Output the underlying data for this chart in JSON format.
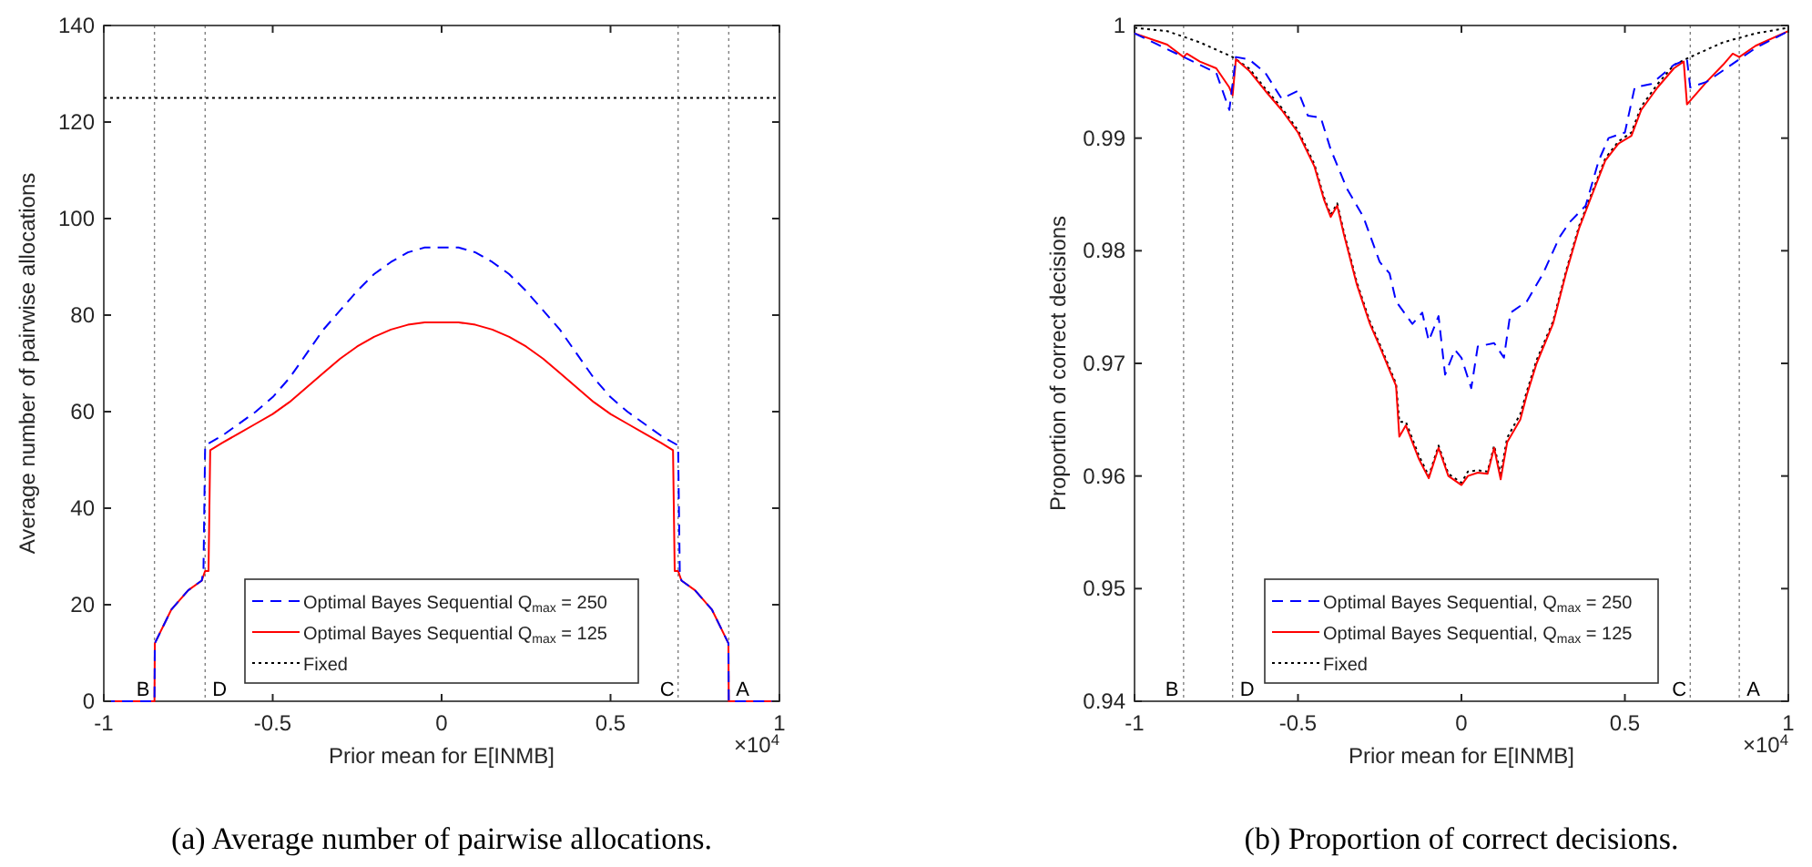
{
  "chart_data": [
    {
      "type": "line",
      "title": "(a) Average number of pairwise allocations.",
      "xlabel": "Prior mean for E[INMB]",
      "ylabel": "Average number of pairwise allocations",
      "xlim": [
        -1,
        1
      ],
      "xticks": [
        -1,
        -0.5,
        0,
        0.5,
        1
      ],
      "ylim": [
        0,
        140
      ],
      "yticks": [
        0,
        20,
        40,
        60,
        80,
        100,
        120,
        140
      ],
      "grid": false,
      "legend": "bottom",
      "annotations": [
        "×10$^{4}$"
      ],
      "ref_lines": [
        {
          "axis": "x",
          "value": -0.85,
          "label": "B",
          "color": "#808080",
          "line_style": "dotted"
        },
        {
          "axis": "x",
          "value": -0.7,
          "label": "D",
          "color": "#808080",
          "line_style": "dotted"
        },
        {
          "axis": "x",
          "value": 0.7,
          "label": "C",
          "color": "#808080",
          "line_style": "dotted"
        },
        {
          "axis": "x",
          "value": 0.85,
          "label": "A",
          "color": "#808080",
          "line_style": "dotted"
        }
      ],
      "series": [
        {
          "name": "Optimal Bayes Sequential Q$_{max}$ = 250",
          "color": "#0000ff",
          "line_style": "dashed",
          "x": [
            -1,
            -0.85,
            -0.849,
            -0.8,
            -0.75,
            -0.71,
            -0.705,
            -0.7,
            -0.65,
            -0.6,
            -0.55,
            -0.5,
            -0.45,
            -0.4,
            -0.35,
            -0.3,
            -0.25,
            -0.2,
            -0.15,
            -0.1,
            -0.05,
            0,
            0.05,
            0.1,
            0.15,
            0.2,
            0.25,
            0.3,
            0.35,
            0.4,
            0.45,
            0.5,
            0.55,
            0.6,
            0.65,
            0.7,
            0.705,
            0.71,
            0.75,
            0.8,
            0.849,
            0.85,
            1
          ],
          "values": [
            0,
            0,
            12,
            19,
            23,
            25,
            27,
            53,
            55,
            57.5,
            60,
            63,
            67,
            72,
            77,
            81,
            85,
            88.5,
            91,
            93,
            94,
            94,
            94,
            93,
            91,
            88.5,
            85,
            81,
            77,
            72,
            67,
            63,
            60,
            57.5,
            55,
            53,
            27,
            25,
            23,
            19,
            12,
            0,
            0
          ]
        },
        {
          "name": "Optimal Bayes Sequential Q$_{max}$ = 125",
          "color": "#ff0000",
          "line_style": "solid",
          "x": [
            -1,
            -0.85,
            -0.849,
            -0.8,
            -0.75,
            -0.71,
            -0.7,
            -0.69,
            -0.685,
            -0.65,
            -0.6,
            -0.55,
            -0.5,
            -0.45,
            -0.4,
            -0.35,
            -0.3,
            -0.25,
            -0.2,
            -0.15,
            -0.1,
            -0.05,
            0,
            0.05,
            0.1,
            0.15,
            0.2,
            0.25,
            0.3,
            0.35,
            0.4,
            0.45,
            0.5,
            0.55,
            0.6,
            0.65,
            0.685,
            0.69,
            0.7,
            0.71,
            0.75,
            0.8,
            0.849,
            0.85,
            1
          ],
          "values": [
            0,
            0,
            12,
            19,
            23,
            25,
            27,
            27,
            52,
            53.5,
            55.5,
            57.5,
            59.5,
            62,
            65,
            68,
            71,
            73.5,
            75.5,
            77,
            78,
            78.5,
            78.5,
            78.5,
            78,
            77,
            75.5,
            73.5,
            71,
            68,
            65,
            62,
            59.5,
            57.5,
            55.5,
            53.5,
            52,
            27,
            27,
            25,
            23,
            19,
            12,
            0,
            0
          ]
        },
        {
          "name": "Fixed",
          "color": "#000000",
          "line_style": "dotted",
          "x": [
            -1,
            1
          ],
          "values": [
            125,
            125
          ]
        }
      ]
    },
    {
      "type": "line",
      "title": "(b) Proportion of correct decisions.",
      "xlabel": "Prior mean for E[INMB]",
      "ylabel": "Proportion of correct decisions",
      "xlim": [
        -1,
        1
      ],
      "xticks": [
        -1,
        -0.5,
        0,
        0.5,
        1
      ],
      "ylim": [
        0.94,
        1
      ],
      "yticks": [
        0.94,
        0.95,
        0.96,
        0.97,
        0.98,
        0.99,
        1
      ],
      "grid": false,
      "legend": "bottom",
      "annotations": [
        "×10$^{4}$"
      ],
      "ref_lines": [
        {
          "axis": "x",
          "value": -0.85,
          "label": "B",
          "color": "#808080",
          "line_style": "dotted"
        },
        {
          "axis": "x",
          "value": -0.7,
          "label": "D",
          "color": "#808080",
          "line_style": "dotted"
        },
        {
          "axis": "x",
          "value": 0.7,
          "label": "C",
          "color": "#808080",
          "line_style": "dotted"
        },
        {
          "axis": "x",
          "value": 0.85,
          "label": "A",
          "color": "#808080",
          "line_style": "dotted"
        }
      ],
      "series": [
        {
          "name": "Optimal Bayes Sequential, Q$_{max}$ = 250",
          "color": "#0000ff",
          "line_style": "dashed",
          "x": [
            -1,
            -0.85,
            -0.8,
            -0.75,
            -0.71,
            -0.69,
            -0.65,
            -0.6,
            -0.55,
            -0.5,
            -0.47,
            -0.43,
            -0.4,
            -0.35,
            -0.3,
            -0.25,
            -0.22,
            -0.2,
            -0.15,
            -0.12,
            -0.1,
            -0.07,
            -0.05,
            -0.02,
            0,
            0.03,
            0.05,
            0.1,
            0.13,
            0.15,
            0.2,
            0.25,
            0.3,
            0.33,
            0.38,
            0.42,
            0.45,
            0.5,
            0.53,
            0.58,
            0.65,
            0.69,
            0.7,
            0.75,
            0.8,
            0.85,
            0.9,
            1
          ],
          "values": [
            0.9993,
            0.9972,
            0.9965,
            0.9958,
            0.9925,
            0.9972,
            0.997,
            0.9958,
            0.9935,
            0.9942,
            0.992,
            0.9918,
            0.989,
            0.9855,
            0.983,
            0.979,
            0.978,
            0.9755,
            0.9735,
            0.9745,
            0.972,
            0.9742,
            0.969,
            0.9712,
            0.9705,
            0.9678,
            0.9715,
            0.9718,
            0.9705,
            0.9745,
            0.9755,
            0.978,
            0.9812,
            0.9825,
            0.984,
            0.988,
            0.99,
            0.9905,
            0.9945,
            0.9948,
            0.9965,
            0.997,
            0.9945,
            0.995,
            0.996,
            0.997,
            0.998,
            0.9995
          ]
        },
        {
          "name": "Optimal Bayes Sequential, Q$_{max}$ = 125",
          "color": "#ff0000",
          "line_style": "solid",
          "x": [
            -1,
            -0.9,
            -0.85,
            -0.84,
            -0.8,
            -0.75,
            -0.71,
            -0.7,
            -0.69,
            -0.65,
            -0.6,
            -0.55,
            -0.5,
            -0.45,
            -0.42,
            -0.4,
            -0.38,
            -0.36,
            -0.32,
            -0.28,
            -0.25,
            -0.2,
            -0.19,
            -0.17,
            -0.13,
            -0.1,
            -0.07,
            -0.04,
            0,
            0.02,
            0.05,
            0.08,
            0.1,
            0.12,
            0.14,
            0.18,
            0.2,
            0.23,
            0.28,
            0.32,
            0.36,
            0.4,
            0.44,
            0.48,
            0.52,
            0.55,
            0.6,
            0.65,
            0.68,
            0.69,
            0.75,
            0.8,
            0.83,
            0.85,
            0.9,
            1
          ],
          "values": [
            0.9993,
            0.9983,
            0.9972,
            0.9975,
            0.9968,
            0.9962,
            0.9945,
            0.9938,
            0.997,
            0.996,
            0.9942,
            0.9925,
            0.9905,
            0.9875,
            0.9845,
            0.983,
            0.984,
            0.9815,
            0.977,
            0.9735,
            0.9715,
            0.968,
            0.9635,
            0.9645,
            0.9615,
            0.9598,
            0.9625,
            0.96,
            0.9592,
            0.96,
            0.9603,
            0.9602,
            0.9625,
            0.9597,
            0.963,
            0.965,
            0.9672,
            0.97,
            0.9735,
            0.978,
            0.982,
            0.985,
            0.988,
            0.9895,
            0.9902,
            0.9925,
            0.9945,
            0.9962,
            0.9968,
            0.993,
            0.995,
            0.9965,
            0.9975,
            0.9972,
            0.9982,
            0.9995
          ]
        },
        {
          "name": "Fixed",
          "color": "#000000",
          "line_style": "dotted",
          "x": [
            -1,
            -0.9,
            -0.8,
            -0.7,
            -0.65,
            -0.6,
            -0.55,
            -0.5,
            -0.45,
            -0.42,
            -0.4,
            -0.38,
            -0.36,
            -0.32,
            -0.28,
            -0.25,
            -0.2,
            -0.19,
            -0.17,
            -0.13,
            -0.1,
            -0.07,
            -0.04,
            0,
            0.02,
            0.05,
            0.08,
            0.1,
            0.12,
            0.14,
            0.18,
            0.2,
            0.23,
            0.28,
            0.32,
            0.36,
            0.4,
            0.44,
            0.48,
            0.52,
            0.55,
            0.6,
            0.65,
            0.7,
            0.8,
            0.9,
            1
          ],
          "values": [
            0.9998,
            0.9995,
            0.9985,
            0.9972,
            0.9962,
            0.9944,
            0.9927,
            0.9907,
            0.9877,
            0.9847,
            0.9832,
            0.9842,
            0.9817,
            0.9772,
            0.9737,
            0.9717,
            0.9682,
            0.9648,
            0.9648,
            0.9618,
            0.96,
            0.9627,
            0.9602,
            0.9594,
            0.9604,
            0.9605,
            0.9604,
            0.9627,
            0.9602,
            0.9634,
            0.9655,
            0.9675,
            0.9703,
            0.9737,
            0.9782,
            0.9822,
            0.9852,
            0.9882,
            0.9897,
            0.9905,
            0.9928,
            0.9948,
            0.9965,
            0.9972,
            0.9985,
            0.9993,
            0.9998
          ]
        }
      ]
    }
  ]
}
